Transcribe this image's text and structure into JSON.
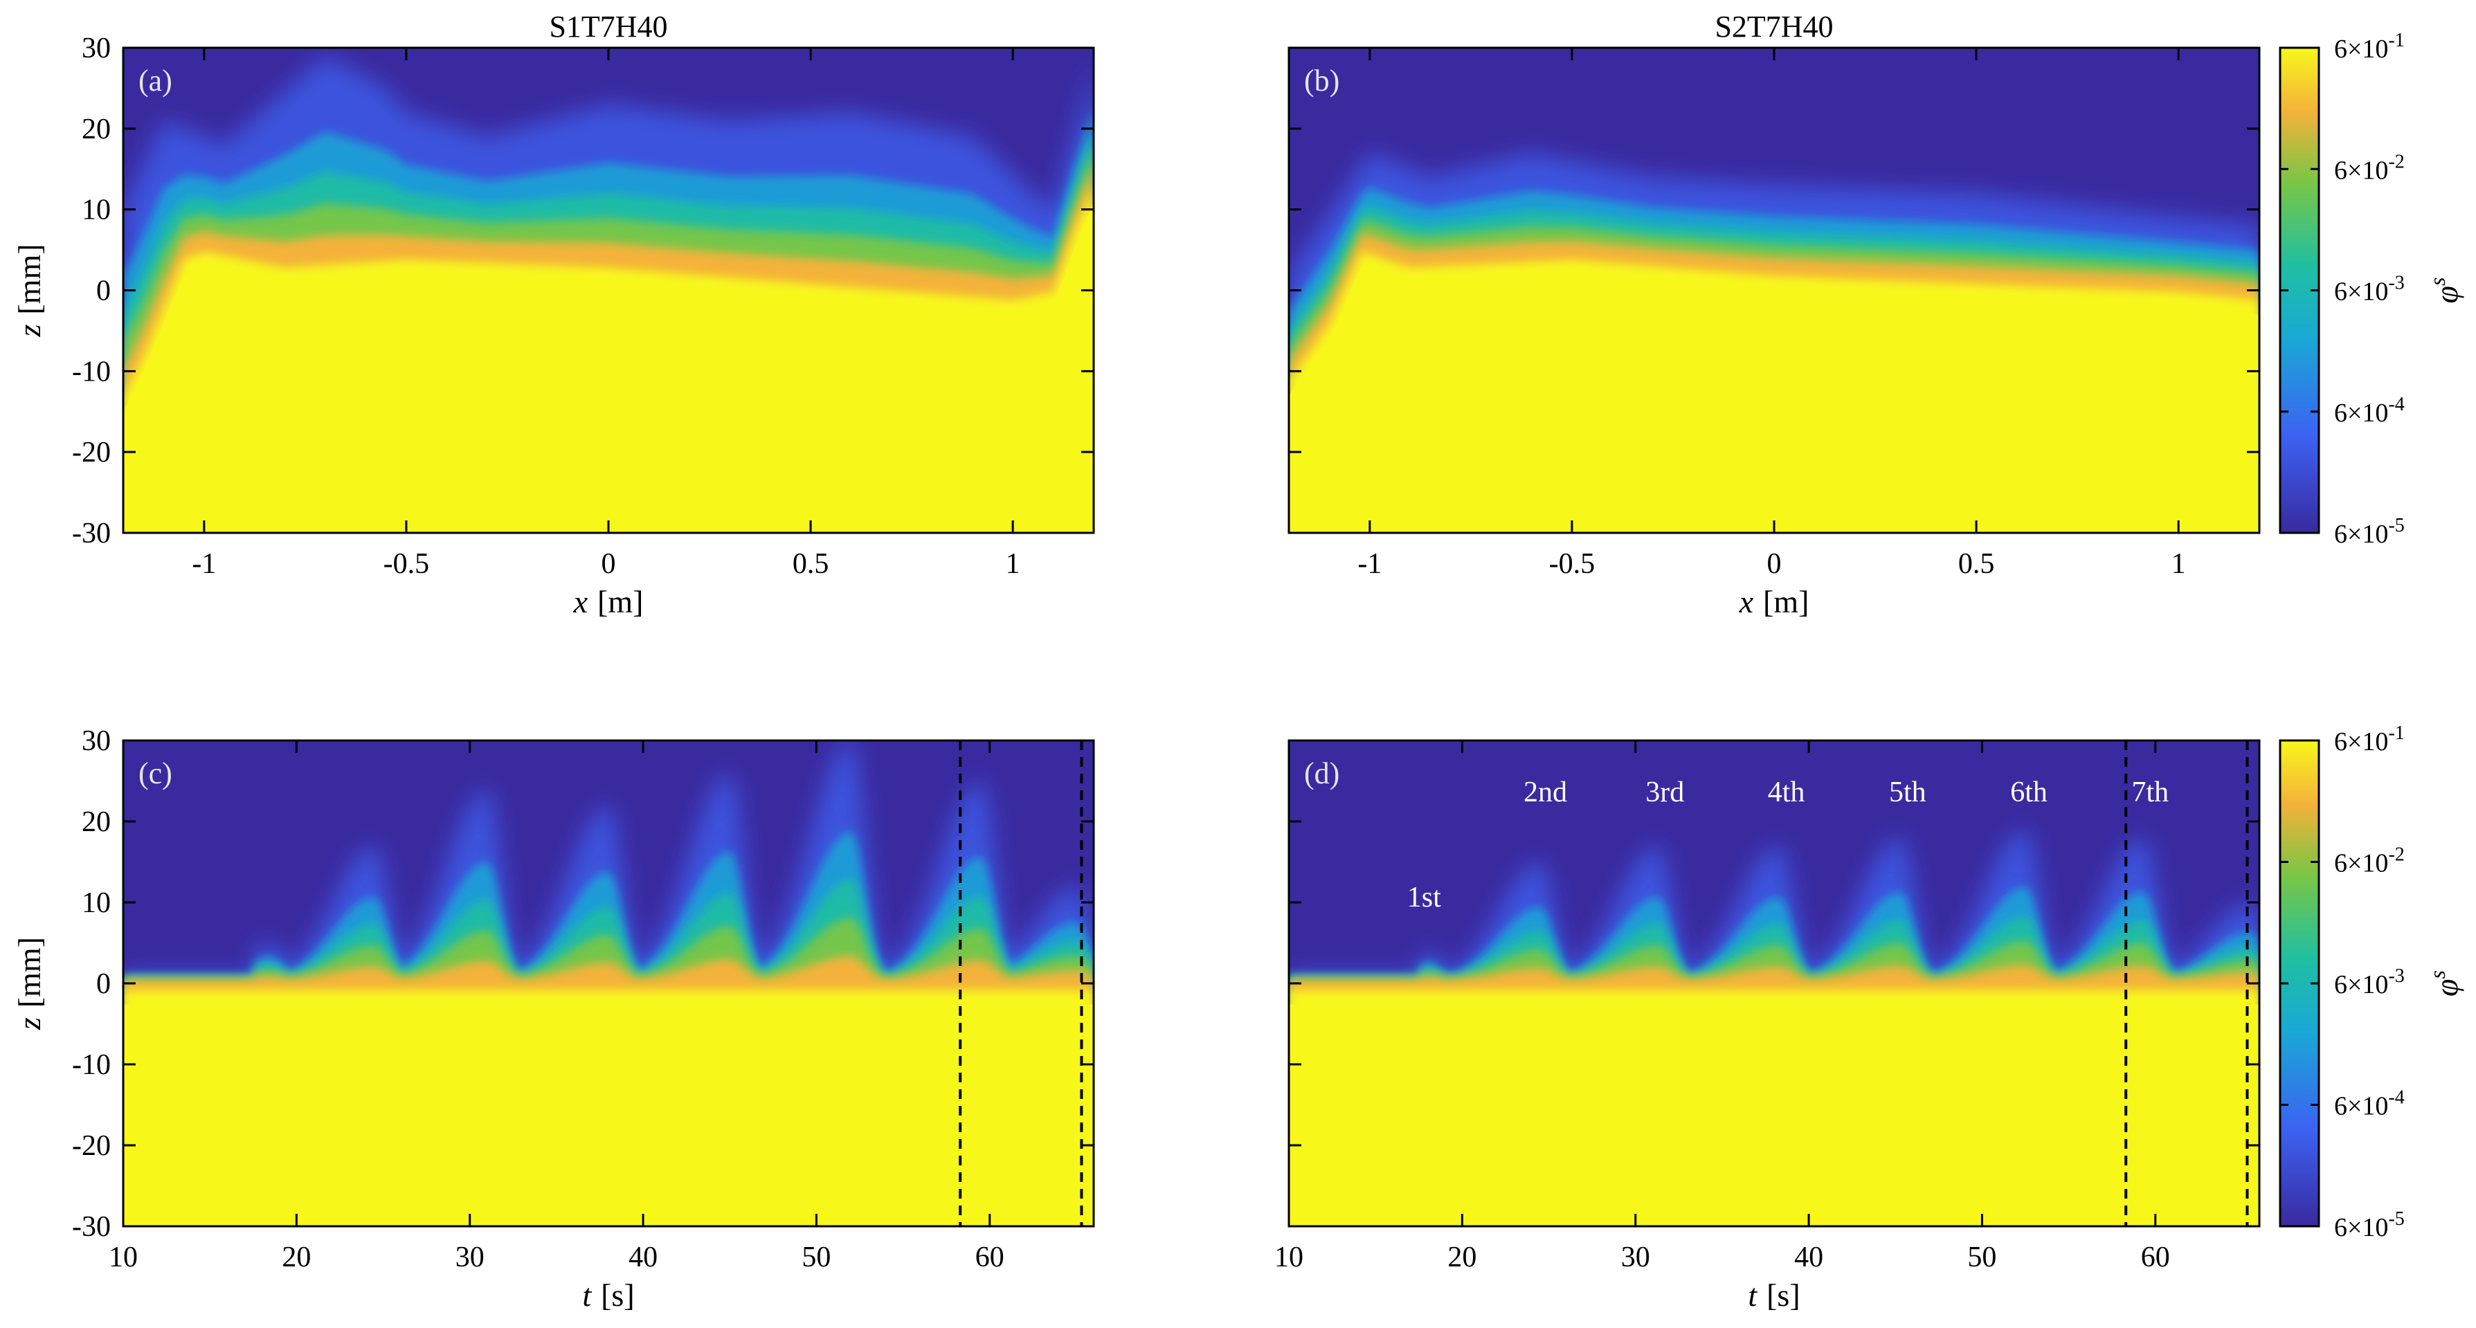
{
  "colors": {
    "deep": "#3a2aa0",
    "blue": "#3c62f2",
    "cyan": "#1aa8d6",
    "teal": "#1fbfa2",
    "green": "#78c646",
    "orange": "#f4b23a",
    "yellow": "#f7f71a"
  },
  "chart_data": [
    {
      "id": "a",
      "type": "heatmap",
      "panel_label": "(a)",
      "title": "S1T7H40",
      "xlabel_var": "x",
      "xlabel_unit": "[m]",
      "ylabel_var": "z",
      "ylabel_unit": "[mm]",
      "xlim": [
        -1.2,
        1.2
      ],
      "ylim": [
        -30,
        30
      ],
      "xticks": [
        -1,
        -0.5,
        0,
        0.5,
        1
      ],
      "xticklabels": [
        "-1",
        "-0.5",
        "0",
        "0.5",
        "1"
      ],
      "yticks": [
        -30,
        -20,
        -10,
        0,
        10,
        20,
        30
      ],
      "yticklabels": [
        "-30",
        "-20",
        "-10",
        "0",
        "10",
        "20",
        "30"
      ],
      "bed_level_mm": [
        [
          -1.2,
          -12
        ],
        [
          -1.15,
          -7
        ],
        [
          -1.1,
          -1
        ],
        [
          -1.05,
          5
        ],
        [
          -1.0,
          6
        ],
        [
          -0.8,
          4
        ],
        [
          -0.5,
          5
        ],
        [
          0,
          4
        ],
        [
          0.5,
          2
        ],
        [
          1.0,
          0
        ],
        [
          1.1,
          1
        ],
        [
          1.15,
          8
        ],
        [
          1.2,
          14
        ]
      ],
      "suspension_top_mm": [
        [
          -1.2,
          10
        ],
        [
          -1.1,
          21
        ],
        [
          -0.95,
          18
        ],
        [
          -0.7,
          29
        ],
        [
          -0.55,
          25
        ],
        [
          -0.5,
          22
        ],
        [
          -0.3,
          19
        ],
        [
          0,
          23
        ],
        [
          0.3,
          21
        ],
        [
          0.6,
          22
        ],
        [
          0.9,
          19
        ],
        [
          1.05,
          12
        ],
        [
          1.1,
          10
        ],
        [
          1.2,
          28
        ]
      ]
    },
    {
      "id": "b",
      "type": "heatmap",
      "panel_label": "(b)",
      "title": "S2T7H40",
      "xlabel_var": "x",
      "xlabel_unit": "[m]",
      "xlim": [
        -1.2,
        1.2
      ],
      "ylim": [
        -30,
        30
      ],
      "xticks": [
        -1,
        -0.5,
        0,
        0.5,
        1
      ],
      "xticklabels": [
        "-1",
        "-0.5",
        "0",
        "0.5",
        "1"
      ],
      "yticks": [
        -30,
        -20,
        -10,
        0,
        10,
        20,
        30
      ],
      "bed_level_mm": [
        [
          -1.2,
          -10
        ],
        [
          -1.1,
          -3
        ],
        [
          -1.02,
          6
        ],
        [
          -0.9,
          4
        ],
        [
          -0.5,
          5
        ],
        [
          0,
          3
        ],
        [
          0.5,
          2
        ],
        [
          1.0,
          1
        ],
        [
          1.2,
          0
        ]
      ],
      "suspension_top_mm": [
        [
          -1.2,
          2
        ],
        [
          -1.0,
          17
        ],
        [
          -0.85,
          14
        ],
        [
          -0.6,
          17
        ],
        [
          -0.3,
          14
        ],
        [
          0,
          13
        ],
        [
          0.5,
          12
        ],
        [
          1.0,
          9
        ],
        [
          1.2,
          8
        ]
      ]
    },
    {
      "id": "c",
      "type": "heatmap",
      "panel_label": "(c)",
      "xlabel_var": "t",
      "xlabel_unit": "[s]",
      "ylabel_var": "z",
      "ylabel_unit": "[mm]",
      "xlim": [
        10,
        66
      ],
      "ylim": [
        -30,
        30
      ],
      "xticks": [
        10,
        20,
        30,
        40,
        50,
        60
      ],
      "xticklabels": [
        "10",
        "20",
        "30",
        "40",
        "50",
        "60"
      ],
      "yticks": [
        -30,
        -20,
        -10,
        0,
        10,
        20,
        30
      ],
      "yticklabels": [
        "-30",
        "-20",
        "-10",
        "0",
        "10",
        "20",
        "30"
      ],
      "dashed_lines_t": [
        58.3,
        65.3
      ],
      "peaks": [
        {
          "t": 18.5,
          "height": 5
        },
        {
          "t": 24.5,
          "height": 17
        },
        {
          "t": 31.0,
          "height": 24
        },
        {
          "t": 38.0,
          "height": 22
        },
        {
          "t": 45.0,
          "height": 26
        },
        {
          "t": 52.0,
          "height": 30
        },
        {
          "t": 59.5,
          "height": 25
        },
        {
          "t": 65.0,
          "height": 12
        }
      ]
    },
    {
      "id": "d",
      "type": "heatmap",
      "panel_label": "(d)",
      "xlabel_var": "t",
      "xlabel_unit": "[s]",
      "xlim": [
        10,
        66
      ],
      "ylim": [
        -30,
        30
      ],
      "xticks": [
        10,
        20,
        30,
        40,
        50,
        60
      ],
      "xticklabels": [
        "10",
        "20",
        "30",
        "40",
        "50",
        "60"
      ],
      "yticks": [
        -30,
        -20,
        -10,
        0,
        10,
        20,
        30
      ],
      "dashed_lines_t": [
        58.3,
        65.3
      ],
      "peaks": [
        {
          "t": 18.0,
          "height": 4
        },
        {
          "t": 24.5,
          "height": 15
        },
        {
          "t": 31.3,
          "height": 17
        },
        {
          "t": 38.3,
          "height": 17
        },
        {
          "t": 45.3,
          "height": 18
        },
        {
          "t": 52.5,
          "height": 19
        },
        {
          "t": 59.3,
          "height": 18
        },
        {
          "t": 65.5,
          "height": 10
        }
      ],
      "annotations": [
        {
          "text": "1st",
          "t": 17.8,
          "z": 9.5
        },
        {
          "text": "2nd",
          "t": 24.8,
          "z": 22.5
        },
        {
          "text": "3rd",
          "t": 31.7,
          "z": 22.5
        },
        {
          "text": "4th",
          "t": 38.7,
          "z": 22.5
        },
        {
          "text": "5th",
          "t": 45.7,
          "z": 22.5
        },
        {
          "text": "6th",
          "t": 52.7,
          "z": 22.5
        },
        {
          "text": "7th",
          "t": 59.7,
          "z": 22.5
        }
      ]
    }
  ],
  "colorbars": [
    {
      "id": "cb-top",
      "label_var": "φ",
      "label_sup": "s",
      "scale": "log",
      "range": [
        6e-05,
        0.6
      ],
      "ticks": [
        {
          "mant": "6×10",
          "exp": "-1"
        },
        {
          "mant": "6×10",
          "exp": "-2"
        },
        {
          "mant": "6×10",
          "exp": "-3"
        },
        {
          "mant": "6×10",
          "exp": "-4"
        },
        {
          "mant": "6×10",
          "exp": "-5"
        }
      ]
    },
    {
      "id": "cb-bottom",
      "label_var": "φ",
      "label_sup": "s",
      "scale": "log",
      "range": [
        6e-05,
        0.6
      ],
      "ticks": [
        {
          "mant": "6×10",
          "exp": "-1"
        },
        {
          "mant": "6×10",
          "exp": "-2"
        },
        {
          "mant": "6×10",
          "exp": "-3"
        },
        {
          "mant": "6×10",
          "exp": "-4"
        },
        {
          "mant": "6×10",
          "exp": "-5"
        }
      ]
    }
  ]
}
